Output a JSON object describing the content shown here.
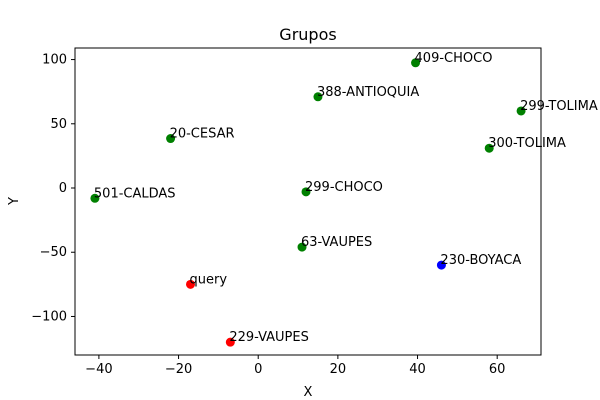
{
  "chart_data": {
    "type": "scatter",
    "title": "Grupos",
    "xlabel": "X",
    "ylabel": "Y",
    "xlim": [
      -46,
      71
    ],
    "ylim": [
      -130,
      109
    ],
    "xticks": [
      -40,
      -20,
      0,
      20,
      40,
      60
    ],
    "yticks": [
      -100,
      -50,
      0,
      50,
      100
    ],
    "grid": false,
    "colors": {
      "green": "#008000",
      "red": "#ff0000",
      "blue": "#0000ff"
    },
    "points": [
      {
        "label": "409-CHOCO",
        "x": 39.5,
        "y": 97.5,
        "color": "#008000"
      },
      {
        "label": "388-ANTIOQUIA",
        "x": 15.0,
        "y": 71.0,
        "color": "#008000"
      },
      {
        "label": "299-TOLIMA",
        "x": 66.0,
        "y": 60.0,
        "color": "#008000"
      },
      {
        "label": "20-CESAR",
        "x": -22.0,
        "y": 38.5,
        "color": "#008000"
      },
      {
        "label": "300-TOLIMA",
        "x": 58.0,
        "y": 31.0,
        "color": "#008000"
      },
      {
        "label": "299-CHOCO",
        "x": 12.0,
        "y": -3.0,
        "color": "#008000"
      },
      {
        "label": "501-CALDAS",
        "x": -41.0,
        "y": -8.0,
        "color": "#008000"
      },
      {
        "label": "63-VAUPES",
        "x": 11.0,
        "y": -46.0,
        "color": "#008000"
      },
      {
        "label": "230-BOYACA",
        "x": 46.0,
        "y": -60.0,
        "color": "#0000ff"
      },
      {
        "label": "query",
        "x": -17.0,
        "y": -75.0,
        "color": "#ff0000"
      },
      {
        "label": "229-VAUPES",
        "x": -7.0,
        "y": -120.0,
        "color": "#ff0000"
      }
    ]
  }
}
